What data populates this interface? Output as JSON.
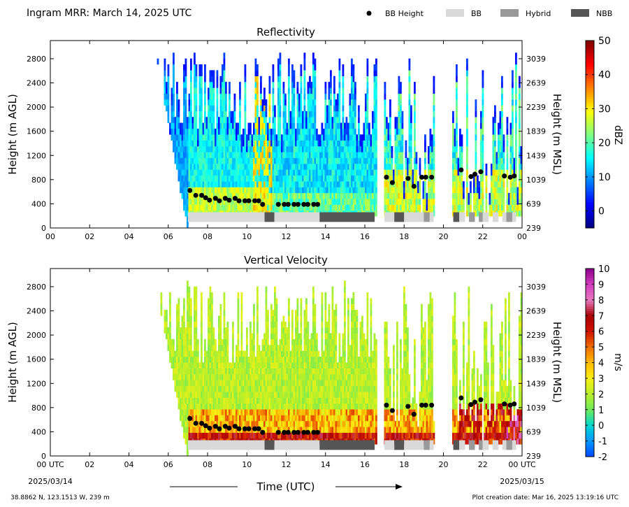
{
  "header": {
    "title": "Ingram MRR:  March 14, 2025 UTC",
    "legend": [
      {
        "name": "BB Height",
        "kind": "dot",
        "color": "#000000"
      },
      {
        "name": "BB",
        "kind": "bar",
        "color": "#d9d9d9"
      },
      {
        "name": "Hybrid",
        "kind": "bar",
        "color": "#999999"
      },
      {
        "name": "NBB",
        "kind": "bar",
        "color": "#555555"
      }
    ]
  },
  "chart_data": [
    {
      "type": "heatmap",
      "title": "Reflectivity",
      "ylabel": "Height (m AGL)",
      "ylabel_right": "Height (m MSL)",
      "x_ticks": [
        "00",
        "02",
        "04",
        "06",
        "08",
        "10",
        "12",
        "14",
        "16",
        "18",
        "20",
        "22",
        "00"
      ],
      "xlim": [
        0,
        24
      ],
      "ylim": [
        0,
        3100
      ],
      "y_ticks": [
        0,
        400,
        800,
        1200,
        1600,
        2000,
        2400,
        2800
      ],
      "y_ticks_right": [
        239,
        639,
        1039,
        1439,
        1839,
        2239,
        2639,
        3039
      ],
      "colorbar": {
        "label": "dBZ",
        "min": -5,
        "max": 50,
        "ticks": [
          0,
          10,
          20,
          30,
          40,
          50
        ],
        "colormap": "jet"
      },
      "bb_height": [
        [
          7.1,
          620
        ],
        [
          7.4,
          540
        ],
        [
          7.7,
          540
        ],
        [
          7.9,
          500
        ],
        [
          8.1,
          460
        ],
        [
          8.4,
          490
        ],
        [
          8.6,
          450
        ],
        [
          8.9,
          490
        ],
        [
          9.1,
          460
        ],
        [
          9.4,
          490
        ],
        [
          9.6,
          450
        ],
        [
          9.9,
          450
        ],
        [
          10.1,
          450
        ],
        [
          10.4,
          450
        ],
        [
          10.6,
          450
        ],
        [
          10.8,
          390
        ],
        [
          11.6,
          390
        ],
        [
          11.9,
          390
        ],
        [
          12.1,
          390
        ],
        [
          12.4,
          390
        ],
        [
          12.6,
          390
        ],
        [
          12.9,
          390
        ],
        [
          13.1,
          390
        ],
        [
          13.4,
          390
        ],
        [
          13.6,
          390
        ],
        [
          17.1,
          840
        ],
        [
          17.4,
          750
        ],
        [
          18.2,
          820
        ],
        [
          18.5,
          690
        ],
        [
          18.9,
          840
        ],
        [
          19.1,
          840
        ],
        [
          19.4,
          840
        ],
        [
          20.9,
          960
        ],
        [
          21.4,
          850
        ],
        [
          21.6,
          890
        ],
        [
          21.9,
          930
        ],
        [
          23.1,
          860
        ],
        [
          23.4,
          840
        ],
        [
          23.6,
          860
        ]
      ],
      "bb_type_segments": [
        [
          7.0,
          10.9,
          "BB"
        ],
        [
          10.9,
          11.4,
          "NBB"
        ],
        [
          11.4,
          13.7,
          "BB"
        ],
        [
          13.7,
          16.5,
          "NBB"
        ],
        [
          17.0,
          17.5,
          "BB"
        ],
        [
          17.5,
          18.0,
          "NBB"
        ],
        [
          18.0,
          19.0,
          "BB"
        ],
        [
          19.0,
          19.3,
          "Hybrid"
        ],
        [
          19.3,
          19.5,
          "BB"
        ],
        [
          20.5,
          20.8,
          "NBB"
        ],
        [
          20.8,
          21.1,
          "BB"
        ],
        [
          21.3,
          21.6,
          "Hybrid"
        ],
        [
          21.8,
          22.0,
          "Hybrid"
        ],
        [
          22.0,
          22.3,
          "BB"
        ],
        [
          22.5,
          22.8,
          "BB"
        ],
        [
          23.0,
          23.2,
          "BB"
        ],
        [
          23.2,
          23.5,
          "Hybrid"
        ],
        [
          23.5,
          23.7,
          "BB"
        ]
      ]
    },
    {
      "type": "heatmap",
      "title": "Vertical Velocity",
      "xlabel": "Time (UTC)",
      "ylabel": "Height (m AGL)",
      "ylabel_right": "Height (m MSL)",
      "x_ticks": [
        "00 UTC",
        "02",
        "04",
        "06",
        "08",
        "10",
        "12",
        "14",
        "16",
        "18",
        "20",
        "22",
        "00 UTC"
      ],
      "x_date_start": "2025/03/14",
      "x_date_end": "2025/03/15",
      "xlim": [
        0,
        24
      ],
      "ylim": [
        0,
        3100
      ],
      "y_ticks": [
        0,
        400,
        800,
        1200,
        1600,
        2000,
        2400,
        2800
      ],
      "y_ticks_right": [
        239,
        639,
        1039,
        1439,
        1839,
        2239,
        2639,
        3039
      ],
      "colorbar": {
        "label": "m/s",
        "min": -2,
        "max": 10,
        "ticks": [
          -2,
          -1,
          0,
          1,
          2,
          3,
          4,
          5,
          6,
          7,
          8,
          9,
          10
        ],
        "colormap": "velocity"
      },
      "bb_height": [
        [
          7.1,
          620
        ],
        [
          7.4,
          540
        ],
        [
          7.7,
          540
        ],
        [
          7.9,
          500
        ],
        [
          8.1,
          460
        ],
        [
          8.4,
          490
        ],
        [
          8.6,
          450
        ],
        [
          8.9,
          490
        ],
        [
          9.1,
          460
        ],
        [
          9.4,
          490
        ],
        [
          9.6,
          450
        ],
        [
          9.9,
          450
        ],
        [
          10.1,
          450
        ],
        [
          10.4,
          450
        ],
        [
          10.6,
          450
        ],
        [
          10.8,
          390
        ],
        [
          11.6,
          390
        ],
        [
          11.9,
          390
        ],
        [
          12.1,
          390
        ],
        [
          12.4,
          390
        ],
        [
          12.6,
          390
        ],
        [
          12.9,
          390
        ],
        [
          13.1,
          390
        ],
        [
          13.4,
          390
        ],
        [
          13.6,
          390
        ],
        [
          17.1,
          840
        ],
        [
          17.4,
          750
        ],
        [
          18.2,
          820
        ],
        [
          18.5,
          690
        ],
        [
          18.9,
          840
        ],
        [
          19.1,
          840
        ],
        [
          19.4,
          840
        ],
        [
          20.9,
          960
        ],
        [
          21.4,
          850
        ],
        [
          21.6,
          890
        ],
        [
          21.9,
          930
        ],
        [
          23.1,
          860
        ],
        [
          23.4,
          840
        ],
        [
          23.6,
          860
        ]
      ],
      "bb_type_segments": [
        [
          7.0,
          10.9,
          "BB"
        ],
        [
          10.9,
          11.4,
          "NBB"
        ],
        [
          11.4,
          13.7,
          "BB"
        ],
        [
          13.7,
          16.5,
          "NBB"
        ],
        [
          17.0,
          17.5,
          "BB"
        ],
        [
          17.5,
          18.0,
          "NBB"
        ],
        [
          18.0,
          19.0,
          "BB"
        ],
        [
          19.0,
          19.3,
          "Hybrid"
        ],
        [
          19.3,
          19.5,
          "BB"
        ],
        [
          20.5,
          20.8,
          "NBB"
        ],
        [
          20.8,
          21.1,
          "BB"
        ],
        [
          21.3,
          21.6,
          "Hybrid"
        ],
        [
          21.8,
          22.0,
          "Hybrid"
        ],
        [
          22.0,
          22.3,
          "BB"
        ],
        [
          22.5,
          22.8,
          "BB"
        ],
        [
          23.0,
          23.2,
          "BB"
        ],
        [
          23.2,
          23.5,
          "Hybrid"
        ],
        [
          23.5,
          23.7,
          "BB"
        ]
      ]
    }
  ],
  "footer": {
    "location": "38.8862 N, 123.1513 W, 239 m",
    "creation": "Plot creation date: Mar 16, 2025 13:19:16 UTC"
  }
}
